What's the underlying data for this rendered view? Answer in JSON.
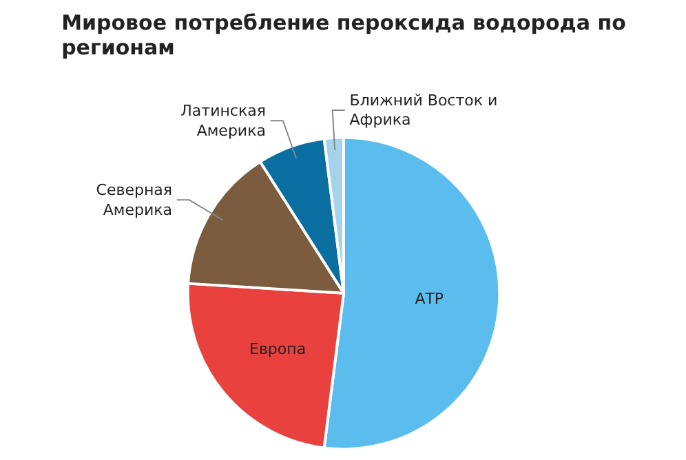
{
  "chart_data": {
    "type": "pie",
    "title": "Мировое потребление пероксида водорода по регионам",
    "categories": [
      "АТР",
      "Европа",
      "Северная Америка",
      "Латинская Америка",
      "Ближний Восток и Африка"
    ],
    "values": [
      52,
      24,
      15,
      7,
      2
    ],
    "colors": [
      "#5bbdee",
      "#e8413e",
      "#7b5c3e",
      "#0a6fa0",
      "#a6d3ec"
    ],
    "legend": false
  }
}
